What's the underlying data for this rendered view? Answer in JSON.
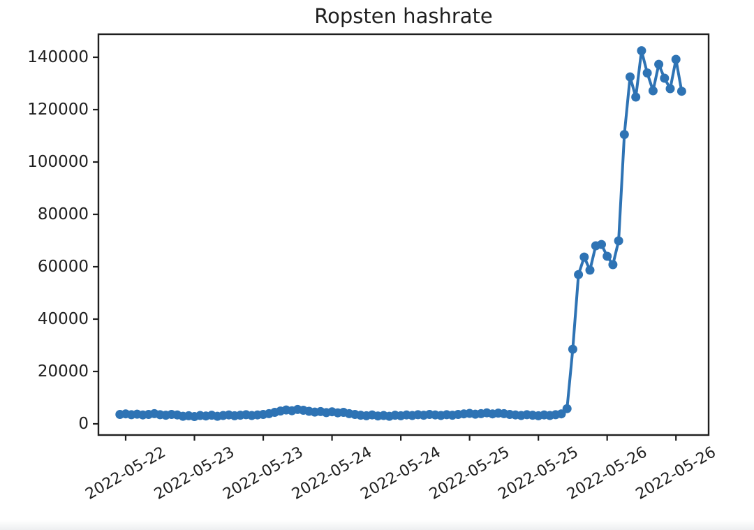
{
  "page": {
    "background_color": "#ffffff",
    "bottom_strip_color": "#edeff1"
  },
  "chart_data": {
    "type": "line",
    "title": "Ropsten hashrate",
    "xlabel": "",
    "ylabel": "",
    "grid": false,
    "legend_position": "none",
    "series_color": "#2e73b4",
    "axis_color": "#1f1f1f",
    "marker": "circle",
    "x_unit": "hours since 2022-05-22 00:00",
    "x_start_hour": 11,
    "x_interval_hours": 1,
    "xlim_hours": [
      7.25,
      113.7
    ],
    "ylim": [
      -4270,
      148800
    ],
    "x_tick_hours": [
      12,
      24,
      36,
      48,
      60,
      72,
      84,
      96,
      108
    ],
    "x_tick_labels": [
      "2022-05-22",
      "2022-05-23",
      "2022-05-23",
      "2022-05-24",
      "2022-05-24",
      "2022-05-25",
      "2022-05-25",
      "2022-05-26",
      "2022-05-26"
    ],
    "y_ticks": [
      0,
      20000,
      40000,
      60000,
      80000,
      100000,
      120000,
      140000
    ],
    "values": [
      3600,
      3800,
      3500,
      3700,
      3400,
      3600,
      3900,
      3500,
      3300,
      3600,
      3400,
      2900,
      3100,
      2800,
      3200,
      3000,
      3300,
      2900,
      3200,
      3400,
      3100,
      3300,
      3500,
      3200,
      3400,
      3600,
      3900,
      4400,
      4900,
      5300,
      5000,
      5500,
      5200,
      4800,
      4500,
      4700,
      4300,
      4600,
      4200,
      4400,
      3900,
      3600,
      3300,
      3100,
      3400,
      3000,
      3200,
      2900,
      3300,
      3100,
      3400,
      3200,
      3500,
      3300,
      3600,
      3400,
      3200,
      3500,
      3300,
      3600,
      3800,
      4000,
      3700,
      3900,
      4200,
      3800,
      4100,
      3900,
      3600,
      3400,
      3200,
      3500,
      3300,
      3100,
      3400,
      3200,
      3500,
      3800,
      5800,
      28500,
      57000,
      63700,
      58700,
      68000,
      68500,
      64000,
      60800,
      69900,
      110500,
      132500,
      124800,
      142500,
      134000,
      127200,
      137300,
      132000,
      128000,
      139200,
      127000
    ]
  }
}
